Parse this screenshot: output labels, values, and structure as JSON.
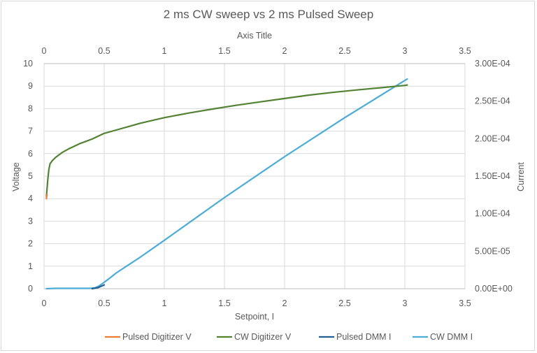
{
  "chart_data": {
    "type": "line",
    "title": "2 ms CW sweep vs 2 ms Pulsed Sweep",
    "top_axis_title": "Axis Title",
    "xlabel": "Setpoint, I",
    "ylabel": "Voltage",
    "y2label": "Current",
    "xlim": [
      0,
      3.5
    ],
    "ylim": [
      0,
      10
    ],
    "y2lim": [
      0,
      0.0003
    ],
    "x_ticks": [
      "0",
      "0.5",
      "1",
      "1.5",
      "2",
      "2.5",
      "3",
      "3.5"
    ],
    "y_ticks": [
      "0",
      "1",
      "2",
      "3",
      "4",
      "5",
      "6",
      "7",
      "8",
      "9",
      "10"
    ],
    "y2_ticks": [
      "0.00E+00",
      "5.00E-05",
      "1.00E-04",
      "1.50E-04",
      "2.00E-04",
      "2.50E-04",
      "3.00E-04"
    ],
    "grid": true,
    "legend_position": "bottom",
    "series": [
      {
        "name": "Pulsed Digitizer V",
        "axis": "left",
        "color": "#ed7d31",
        "x": [
          0.02,
          0.022,
          0.025
        ],
        "y": [
          4.0,
          4.1,
          4.2
        ]
      },
      {
        "name": "CW Digitizer V",
        "axis": "left",
        "color": "#548235",
        "x": [
          0.02,
          0.03,
          0.04,
          0.05,
          0.07,
          0.1,
          0.15,
          0.2,
          0.3,
          0.4,
          0.5,
          0.6,
          0.7,
          0.8,
          1.0,
          1.2,
          1.4,
          1.6,
          1.8,
          2.0,
          2.2,
          2.4,
          2.6,
          2.8,
          3.0,
          3.02
        ],
        "y": [
          4.1,
          4.8,
          5.3,
          5.55,
          5.7,
          5.85,
          6.05,
          6.2,
          6.45,
          6.65,
          6.9,
          7.05,
          7.2,
          7.35,
          7.6,
          7.8,
          7.98,
          8.15,
          8.3,
          8.45,
          8.6,
          8.72,
          8.83,
          8.93,
          9.03,
          9.05
        ]
      },
      {
        "name": "Pulsed DMM I",
        "axis": "right",
        "color": "#255e91",
        "x": [
          0.4,
          0.45,
          0.5
        ],
        "y": [
          0.0,
          1.5e-06,
          5e-06
        ]
      },
      {
        "name": "CW DMM I",
        "axis": "right",
        "color": "#4bacd6",
        "x": [
          0.02,
          0.1,
          0.2,
          0.3,
          0.38,
          0.42,
          0.45,
          0.5,
          0.55,
          0.6,
          0.8,
          1.0,
          1.5,
          2.0,
          2.5,
          3.0,
          3.02
        ],
        "y": [
          0.0,
          5e-07,
          5e-07,
          5e-07,
          5e-07,
          1e-06,
          3e-06,
          8.5e-06,
          1.45e-05,
          2.1e-05,
          4.2e-05,
          6.45e-05,
          0.0001215,
          0.000176,
          0.000228,
          0.0002775,
          0.0002795
        ]
      }
    ]
  }
}
